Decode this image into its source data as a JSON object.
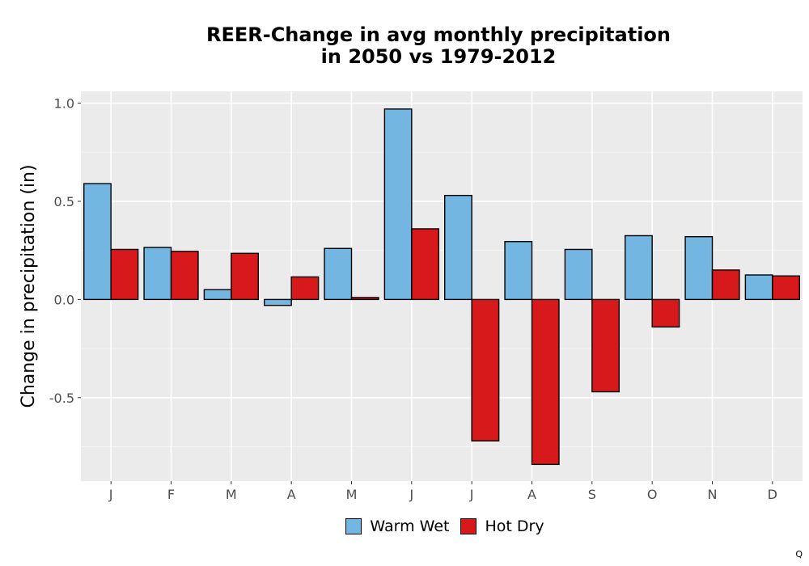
{
  "chart_data": {
    "type": "bar",
    "title_lines": [
      "REER-Change in avg monthly precipitation",
      "in 2050 vs 1979-2012"
    ],
    "ylabel": "Change in precipitation (in)",
    "xlabel": "",
    "categories": [
      "J",
      "F",
      "M",
      "A",
      "M",
      "J",
      "J",
      "A",
      "S",
      "O",
      "N",
      "D"
    ],
    "series": [
      {
        "name": "Warm Wet",
        "color": "#74b6e2",
        "values": [
          0.59,
          0.265,
          0.05,
          -0.03,
          0.26,
          0.97,
          0.53,
          0.295,
          0.255,
          0.325,
          0.32,
          0.125
        ]
      },
      {
        "name": "Hot Dry",
        "color": "#d7191c",
        "values": [
          0.255,
          0.245,
          0.235,
          0.115,
          0.01,
          0.36,
          -0.72,
          -0.84,
          -0.47,
          -0.14,
          0.15,
          0.12
        ]
      }
    ],
    "ylim": [
      -0.925,
      1.06
    ],
    "yticks": [
      1.0,
      0.5,
      0.0,
      -0.5
    ],
    "ytick_labels": [
      "1.0",
      "0.5",
      "0.0",
      "-0.5"
    ],
    "grid": true,
    "legend_position": "bottom"
  },
  "corner_mark": "Q"
}
